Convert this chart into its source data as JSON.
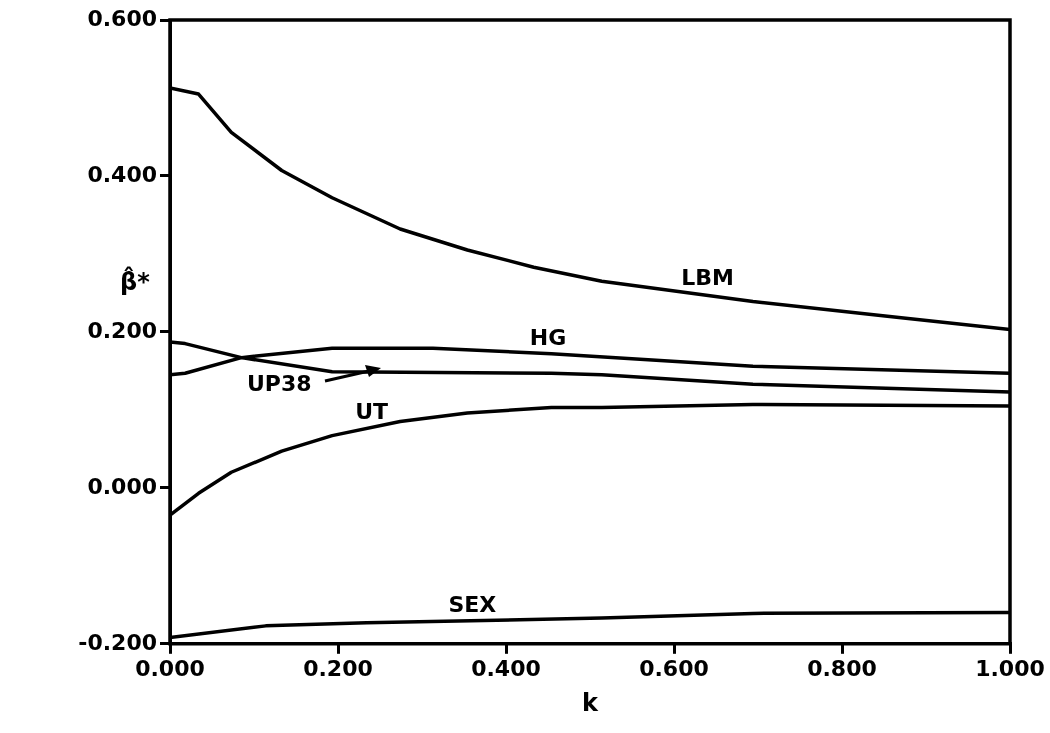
{
  "chart_data": {
    "type": "line",
    "xlabel": "k",
    "ylabel": "β̂*",
    "xlim": [
      0,
      1
    ],
    "ylim": [
      -0.2,
      0.6
    ],
    "xticks": [
      {
        "value": 0,
        "label": "0.000"
      },
      {
        "value": 0.2,
        "label": "0.200"
      },
      {
        "value": 0.4,
        "label": "0.400"
      },
      {
        "value": 0.6,
        "label": "0.600"
      },
      {
        "value": 0.8,
        "label": "0.800"
      },
      {
        "value": 1,
        "label": "1.000"
      }
    ],
    "yticks": [
      {
        "value": -0.2,
        "label": "-0.200"
      },
      {
        "value": 0,
        "label": "0.000"
      },
      {
        "value": 0.2,
        "label": "0.200"
      },
      {
        "value": 0.4,
        "label": "0.400"
      },
      {
        "value": 0.6,
        "label": "0.600"
      }
    ],
    "marker": "none",
    "line_style": "solid",
    "series": [
      {
        "name": "LBM",
        "color": "#000000",
        "x": [
          0,
          0.034,
          0.073,
          0.133,
          0.193,
          0.274,
          0.354,
          0.433,
          0.514,
          0.694,
          0.854,
          1
        ],
        "values": [
          0.513,
          0.505,
          0.456,
          0.407,
          0.372,
          0.332,
          0.305,
          0.283,
          0.265,
          0.239,
          0.22,
          0.203
        ]
      },
      {
        "name": "HG",
        "color": "#000000",
        "x": [
          0,
          0.018,
          0.085,
          0.193,
          0.313,
          0.454,
          0.694,
          1
        ],
        "values": [
          0.145,
          0.147,
          0.167,
          0.179,
          0.179,
          0.172,
          0.156,
          0.147
        ]
      },
      {
        "name": "UP38",
        "color": "#000000",
        "x": [
          0,
          0.018,
          0.085,
          0.193,
          0.454,
          0.514,
          0.694,
          1
        ],
        "values": [
          0.187,
          0.185,
          0.167,
          0.149,
          0.147,
          0.145,
          0.133,
          0.123
        ]
      },
      {
        "name": "UT",
        "color": "#000000",
        "x": [
          0,
          0.034,
          0.073,
          0.133,
          0.193,
          0.274,
          0.354,
          0.454,
          0.514,
          0.694,
          1
        ],
        "values": [
          -0.035,
          -0.007,
          0.02,
          0.047,
          0.067,
          0.085,
          0.096,
          0.103,
          0.103,
          0.107,
          0.105
        ]
      },
      {
        "name": "SEX",
        "color": "#000000",
        "x": [
          0,
          0.114,
          0.234,
          0.514,
          0.694,
          1
        ],
        "values": [
          -0.192,
          -0.177,
          -0.173,
          -0.167,
          -0.161,
          -0.16
        ]
      }
    ]
  }
}
